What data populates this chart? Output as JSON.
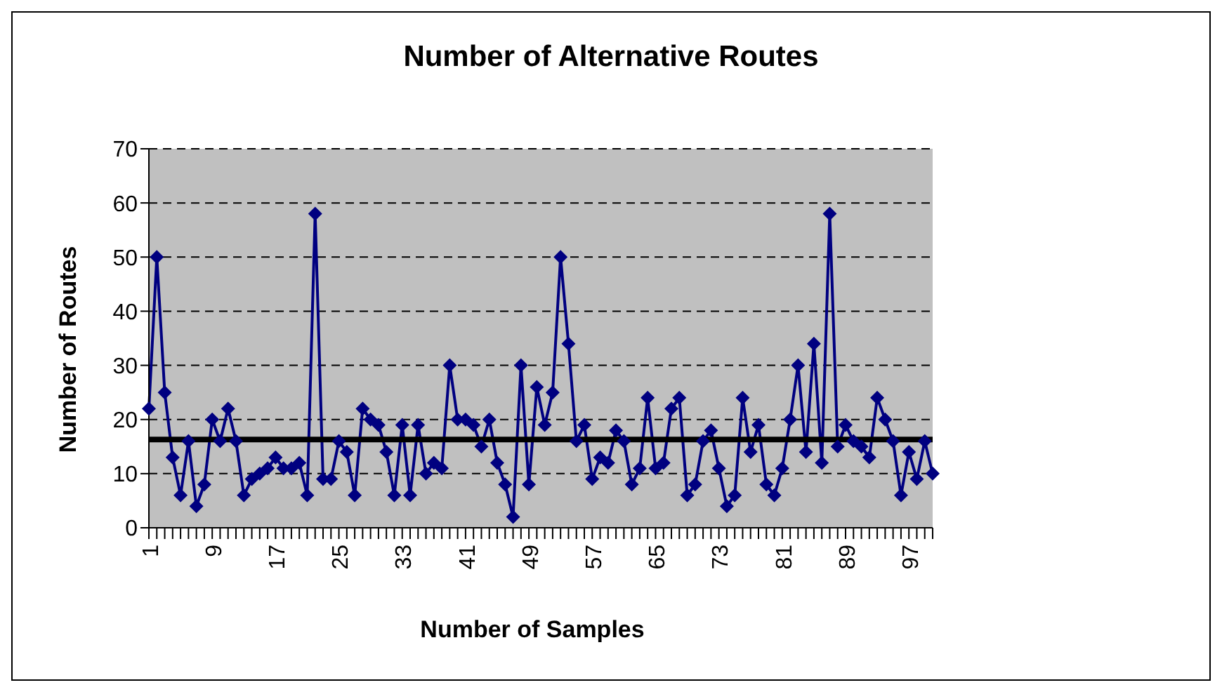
{
  "chart_data": {
    "type": "line",
    "title": "Number of Alternative Routes",
    "xlabel": "Number of Samples",
    "ylabel": "Number of Routes",
    "categories": [
      "1",
      null,
      null,
      null,
      null,
      null,
      null,
      null,
      "9",
      null,
      null,
      null,
      null,
      null,
      null,
      null,
      "17",
      null,
      null,
      null,
      null,
      null,
      null,
      null,
      "25",
      null,
      null,
      null,
      null,
      null,
      null,
      null,
      "33",
      null,
      null,
      null,
      null,
      null,
      null,
      null,
      "41",
      null,
      null,
      null,
      null,
      null,
      null,
      null,
      "49",
      null,
      null,
      null,
      null,
      null,
      null,
      null,
      "57",
      null,
      null,
      null,
      null,
      null,
      null,
      null,
      "65",
      null,
      null,
      null,
      null,
      null,
      null,
      null,
      "73",
      null,
      null,
      null,
      null,
      null,
      null,
      null,
      "81",
      null,
      null,
      null,
      null,
      null,
      null,
      null,
      "89",
      null,
      null,
      null,
      null,
      null,
      null,
      null,
      "97",
      null,
      null,
      null
    ],
    "series": [
      {
        "color": "#000080",
        "values": [
          22,
          50,
          25,
          13,
          6,
          16,
          4,
          8,
          20,
          16,
          22,
          16,
          6,
          9,
          10,
          11,
          13,
          11,
          11,
          12,
          6,
          58,
          9,
          9,
          16,
          14,
          6,
          22,
          20,
          19,
          14,
          6,
          19,
          6,
          19,
          10,
          12,
          11,
          30,
          20,
          20,
          19,
          15,
          20,
          12,
          8,
          2,
          30,
          8,
          26,
          19,
          25,
          50,
          34,
          16,
          19,
          9,
          13,
          12,
          18,
          16,
          8,
          11,
          24,
          11,
          12,
          22,
          24,
          6,
          8,
          16,
          18,
          11,
          4,
          6,
          24,
          14,
          19,
          8,
          6,
          11,
          20,
          30,
          14,
          34,
          12,
          58,
          15,
          19,
          16,
          15,
          13,
          24,
          20,
          16,
          6,
          14,
          9,
          16,
          10
        ]
      }
    ],
    "ylim": [
      0,
      70
    ],
    "yticks": [
      0,
      10,
      20,
      30,
      40,
      50,
      60,
      70
    ],
    "grid": "y",
    "legend": false,
    "marker": "diamond",
    "line_style": "solid",
    "ref_lines": [
      {
        "axis": "y",
        "value": 16.3,
        "color": "#000000"
      }
    ]
  }
}
